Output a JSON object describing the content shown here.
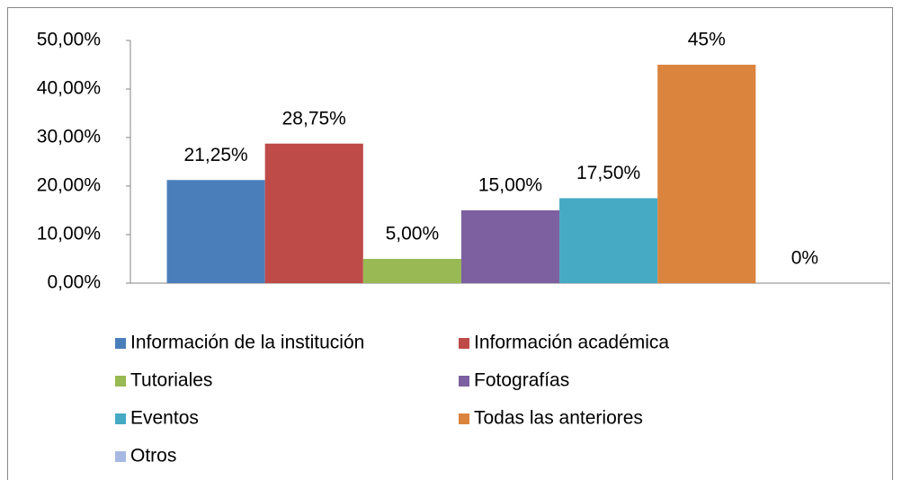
{
  "chart_data": {
    "type": "bar",
    "categories": [
      null
    ],
    "series": [
      {
        "name": "Información de la institución",
        "color": "#4a7ebb",
        "values": [
          21.25
        ],
        "value_labels": [
          "21,25%"
        ]
      },
      {
        "name": "Información académica",
        "color": "#be4b48",
        "values": [
          28.75
        ],
        "value_labels": [
          "28,75%"
        ]
      },
      {
        "name": "Tutoriales",
        "color": "#98b954",
        "values": [
          5
        ],
        "value_labels": [
          "5,00%"
        ]
      },
      {
        "name": "Fotografías",
        "color": "#7d60a0",
        "values": [
          15
        ],
        "value_labels": [
          "15,00%"
        ]
      },
      {
        "name": "Eventos",
        "color": "#46aac5",
        "values": [
          17.5
        ],
        "value_labels": [
          "17,50%"
        ]
      },
      {
        "name": "Todas las anteriores",
        "color": "#db843d",
        "values": [
          45
        ],
        "value_labels": [
          "45%"
        ]
      },
      {
        "name": "Otros",
        "color": "#a7b9e3",
        "values": [
          0
        ],
        "value_labels": [
          "0%"
        ]
      }
    ],
    "ylim": [
      0,
      50
    ],
    "yticks": [
      {
        "value": 0,
        "label": "0,00%"
      },
      {
        "value": 10,
        "label": "10,00%"
      },
      {
        "value": 20,
        "label": "20,00%"
      },
      {
        "value": 30,
        "label": "30,00%"
      },
      {
        "value": 40,
        "label": "40,00%"
      },
      {
        "value": 50,
        "label": "50,00%"
      }
    ],
    "grid": false,
    "legend": "bottom"
  }
}
